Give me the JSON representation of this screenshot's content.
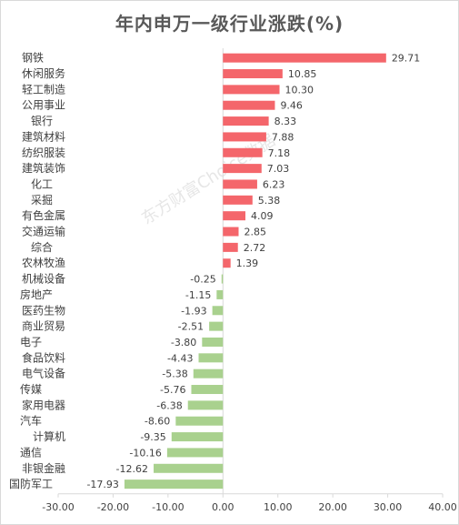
{
  "chart_data": {
    "type": "bar",
    "orientation": "horizontal",
    "title": "年内申万一级行业涨跌(%)",
    "categories": [
      "钢铁",
      "休闲服务",
      "轻工制造",
      "公用事业",
      "银行",
      "建筑材料",
      "纺织服装",
      "建筑装饰",
      "化工",
      "采掘",
      "有色金属",
      "交通运输",
      "综合",
      "农林牧渔",
      "机械设备",
      "房地产",
      "医药生物",
      "商业贸易",
      "电子",
      "食品饮料",
      "电气设备",
      "传媒",
      "家用电器",
      "汽车",
      "计算机",
      "通信",
      "非银金融",
      "国防军工"
    ],
    "values": [
      29.71,
      10.85,
      10.3,
      9.46,
      8.33,
      7.88,
      7.18,
      7.03,
      6.23,
      5.38,
      4.09,
      2.85,
      2.72,
      1.39,
      -0.25,
      -1.15,
      -1.93,
      -2.51,
      -3.8,
      -4.43,
      -5.38,
      -5.76,
      -6.38,
      -8.6,
      -9.35,
      -10.16,
      -12.62,
      -17.93
    ],
    "value_labels": [
      "29.71",
      "10.85",
      "10.30",
      "9.46",
      "8.33",
      "7.88",
      "7.18",
      "7.03",
      "6.23",
      "5.38",
      "4.09",
      "2.85",
      "2.72",
      "1.39",
      "-0.25",
      "-1.15",
      "-1.93",
      "-2.51",
      "-3.80",
      "-4.43",
      "-5.38",
      "-5.76",
      "-6.38",
      "-8.60",
      "-9.35",
      "-10.16",
      "-12.62",
      "-17.93"
    ],
    "xlim": [
      -30,
      40
    ],
    "xticks": [
      -30,
      -20,
      -10,
      0,
      10,
      20,
      30,
      40
    ],
    "xtick_labels": [
      "-30.00",
      "-20.00",
      "-10.00",
      "0.00",
      "10.00",
      "20.00",
      "30.00",
      "40.00"
    ],
    "colors": {
      "positive": "#f4666b",
      "negative": "#a9d18e",
      "axis": "#d9d9d9",
      "text": "#404040"
    },
    "grid": false,
    "legend": "none"
  },
  "watermark": "东方财富Choice数据"
}
